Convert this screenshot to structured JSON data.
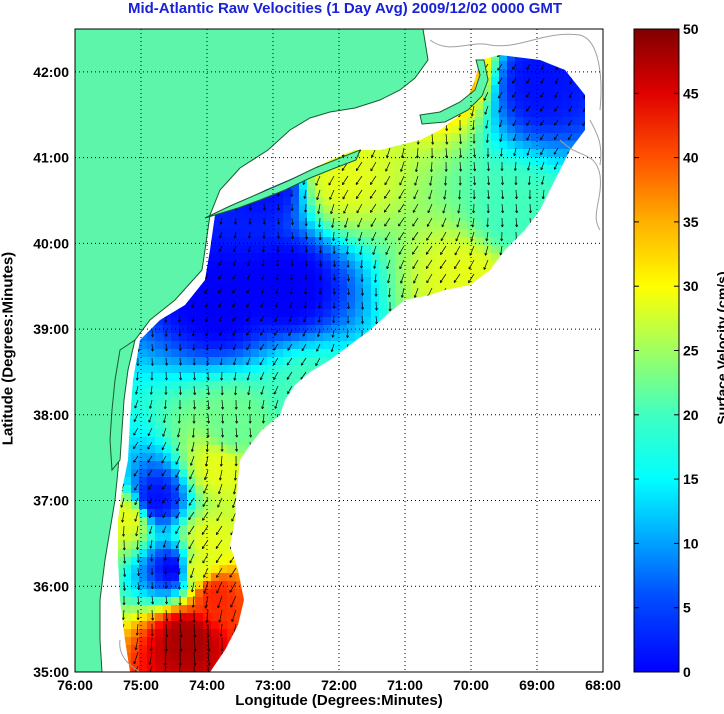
{
  "title": "Mid-Atlantic Raw Velocities (1 Day Avg) 2009/12/02 0000 GMT",
  "map": {
    "xlabel": "Longitude (Degrees:Minutes)",
    "ylabel": "Latitude (Degrees:Minutes)",
    "lon_range": [
      -76,
      -68
    ],
    "lat_range": [
      35,
      42.5
    ],
    "lon_ticks": [
      {
        "value": -76,
        "label": "76:00"
      },
      {
        "value": -75,
        "label": "75:00"
      },
      {
        "value": -74,
        "label": "74:00"
      },
      {
        "value": -73,
        "label": "73:00"
      },
      {
        "value": -72,
        "label": "72:00"
      },
      {
        "value": -71,
        "label": "71:00"
      },
      {
        "value": -70,
        "label": "70:00"
      },
      {
        "value": -69,
        "label": "69:00"
      },
      {
        "value": -68,
        "label": "68:00"
      }
    ],
    "lat_ticks": [
      {
        "value": 35,
        "label": "35:00"
      },
      {
        "value": 36,
        "label": "36:00"
      },
      {
        "value": 37,
        "label": "37:00"
      },
      {
        "value": 38,
        "label": "38:00"
      },
      {
        "value": 39,
        "label": "39:00"
      },
      {
        "value": 40,
        "label": "40:00"
      },
      {
        "value": 41,
        "label": "41:00"
      },
      {
        "value": 42,
        "label": "42:00"
      }
    ],
    "grid": true,
    "land_color": "#5df5a9",
    "bathymetry_color": "#a0a0a0"
  },
  "colorbar": {
    "label": "Surface Velocity (cm/s)",
    "range": [
      0,
      50
    ],
    "ticks": [
      "0",
      "5",
      "10",
      "15",
      "20",
      "25",
      "30",
      "35",
      "40",
      "45",
      "50"
    ],
    "colormap": "jet"
  },
  "field": {
    "description_points": [
      {
        "lon": -74.3,
        "lat": 35.4,
        "speed": 48
      },
      {
        "lon": -73.9,
        "lat": 35.9,
        "speed": 42
      },
      {
        "lon": -74.2,
        "lat": 36.2,
        "speed": 30
      },
      {
        "lon": -75.2,
        "lat": 36.8,
        "speed": 30
      },
      {
        "lon": -74.0,
        "lat": 36.5,
        "speed": 30
      },
      {
        "lon": -73.8,
        "lat": 37.4,
        "speed": 30
      },
      {
        "lon": -73.6,
        "lat": 37.8,
        "speed": 24
      },
      {
        "lon": -72.5,
        "lat": 38.2,
        "speed": 22
      },
      {
        "lon": -70.3,
        "lat": 42.1,
        "speed": 36
      },
      {
        "lon": -69.4,
        "lat": 40.3,
        "speed": 22
      },
      {
        "lon": -70.0,
        "lat": 39.6,
        "speed": 30
      },
      {
        "lon": -72.0,
        "lat": 40.8,
        "speed": 30
      },
      {
        "lon": -73.8,
        "lat": 39.3,
        "speed": 6
      },
      {
        "lon": -72.8,
        "lat": 39.5,
        "speed": 6
      },
      {
        "lon": -73.1,
        "lat": 40.7,
        "speed": 7
      },
      {
        "lon": -69.0,
        "lat": 41.9,
        "speed": 7
      },
      {
        "lon": -74.8,
        "lat": 37.0,
        "speed": 7
      },
      {
        "lon": -74.5,
        "lat": 36.2,
        "speed": 6
      }
    ]
  }
}
